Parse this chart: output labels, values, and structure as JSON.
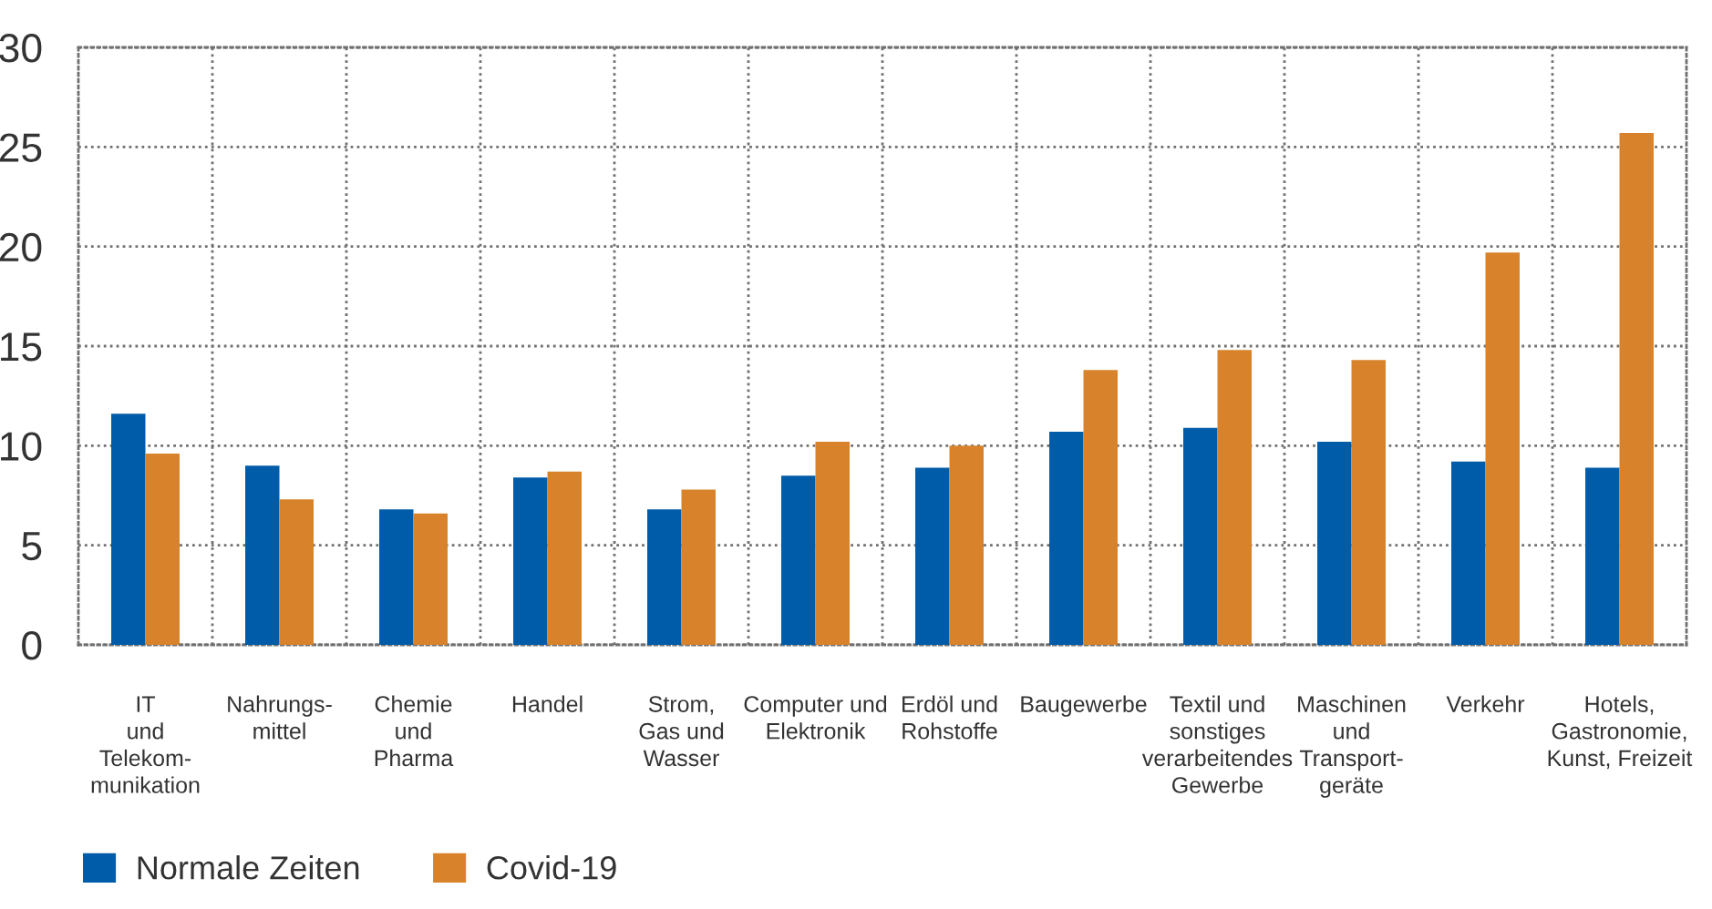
{
  "chart_data": {
    "type": "bar",
    "categories": [
      "IT\nund\nTelekom-\nmunikation",
      "Nahrungs-\nmittel",
      "Chemie\nund\nPharma",
      "Handel",
      "Strom,\nGas und\nWasser",
      "Computer und\nElektronik",
      "Erdöl und\nRohstoffe",
      "Baugewerbe",
      "Textil und\nsonstiges\nverarbeitendes\nGewerbe",
      "Maschinen\nund\nTransport-\ngeräte",
      "Verkehr",
      "Hotels,\nGastronomie,\nKunst, Freizeit"
    ],
    "series": [
      {
        "name": "Normale Zeiten",
        "color": "#005ca9",
        "values": [
          11.6,
          9.0,
          6.8,
          8.4,
          6.8,
          8.5,
          8.9,
          10.7,
          10.9,
          10.2,
          9.2,
          8.9
        ]
      },
      {
        "name": "Covid-19",
        "color": "#d8832b",
        "values": [
          9.6,
          7.3,
          6.6,
          8.7,
          7.8,
          10.2,
          10.0,
          13.8,
          14.8,
          14.3,
          19.7,
          25.7
        ]
      }
    ],
    "ylim": [
      0,
      30
    ],
    "yticks": [
      0,
      5,
      10,
      15,
      20,
      25,
      30
    ],
    "grid": true,
    "legend": "bottom left"
  }
}
